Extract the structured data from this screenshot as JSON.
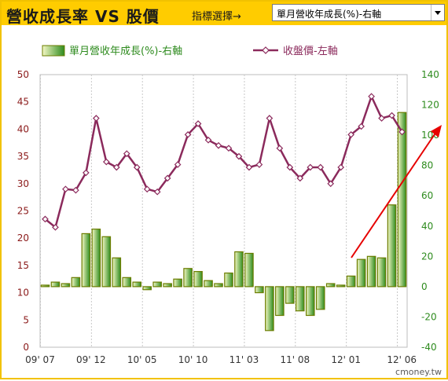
{
  "header": {
    "title": "營收成長率 VS 股價",
    "selector_prompt": "指標選擇→",
    "selector_value": "單月營收年成長(%)-右軸"
  },
  "colors": {
    "header_bg": "#ffcc00",
    "bar_stroke": "#6b7d00",
    "bar_dark": "#2e8b1e",
    "bar_light": "#f4f8c4",
    "line": "#8b2a5c",
    "left_axis_text": "#8b1a1a",
    "right_axis_text": "#2e8b1e",
    "annotation": "#e60000"
  },
  "watermark": "cmoney.tw",
  "chart_data": {
    "type": "bar",
    "legend": [
      "單月營收年成長(%)-右軸",
      "收盤價-左軸"
    ],
    "x_tick_labels": [
      "09' 07",
      "09' 12",
      "10' 05",
      "10' 10",
      "11' 03",
      "11' 08",
      "12' 01",
      "12' 06"
    ],
    "left_axis": {
      "min": 0,
      "max": 50,
      "ticks": [
        0,
        5,
        10,
        15,
        20,
        25,
        30,
        35,
        40,
        45,
        50
      ]
    },
    "right_axis": {
      "min": -40,
      "max": 140,
      "ticks": [
        -40,
        -20,
        0,
        20,
        40,
        60,
        80,
        100,
        120,
        140
      ]
    },
    "series": [
      {
        "name": "單月營收年成長(%)-右軸",
        "kind": "bar",
        "axis": "right",
        "values": [
          1,
          3,
          2,
          6,
          35,
          38,
          33,
          19,
          6,
          3,
          -2,
          3,
          2,
          5,
          12,
          10,
          4,
          2,
          9,
          23,
          22,
          -4,
          -29,
          -19,
          -11,
          -16,
          -19,
          -15,
          2,
          1,
          7,
          18,
          20,
          19,
          54,
          115
        ]
      },
      {
        "name": "收盤價-左軸",
        "kind": "line",
        "axis": "left",
        "values": [
          23.5,
          22,
          29,
          28.8,
          32,
          42,
          34,
          33,
          35.5,
          33,
          29,
          28.5,
          31,
          33.5,
          39,
          41,
          38,
          37,
          36.5,
          35,
          33,
          33.5,
          42,
          36.5,
          33,
          31,
          33,
          33,
          30,
          33,
          39,
          40.5,
          46,
          42,
          42.5,
          39.5
        ]
      }
    ],
    "grid": "vertical dashed",
    "annotation": "red trend arrow pointing up-right"
  }
}
